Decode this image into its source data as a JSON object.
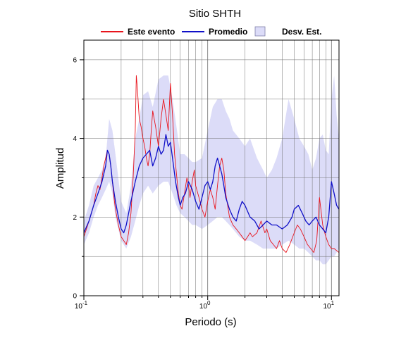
{
  "chart_data": {
    "type": "line",
    "title": "Sitio SHTH",
    "xlabel": "Periodo (s)",
    "ylabel": "Amplitud",
    "xscale": "log",
    "xlim": [
      0.1,
      11.5
    ],
    "ylim": [
      0,
      6.5
    ],
    "grid": true,
    "legend_position": "top",
    "x_ticks": [
      {
        "value": 0.1,
        "base": "10",
        "exp": "-1"
      },
      {
        "value": 1,
        "base": "10",
        "exp": "0"
      },
      {
        "value": 10,
        "base": "10",
        "exp": "1"
      }
    ],
    "y_ticks": [
      {
        "value": 0,
        "label": "0"
      },
      {
        "value": 2,
        "label": "2"
      },
      {
        "value": 4,
        "label": "4"
      },
      {
        "value": 6,
        "label": "6"
      }
    ],
    "legend": [
      {
        "label": "Este evento",
        "kind": "line",
        "color": "#e8141c"
      },
      {
        "label": "Promedio",
        "kind": "line",
        "color": "#1010c8"
      },
      {
        "label": "Desv. Est.",
        "kind": "band",
        "color": "#dcdcf8"
      }
    ],
    "band": {
      "name": "Desv. Est.",
      "color": "#dcdcf8",
      "x": [
        0.1,
        0.11,
        0.12,
        0.13,
        0.14,
        0.15,
        0.16,
        0.17,
        0.18,
        0.2,
        0.22,
        0.24,
        0.26,
        0.28,
        0.3,
        0.33,
        0.36,
        0.4,
        0.44,
        0.48,
        0.52,
        0.56,
        0.6,
        0.65,
        0.7,
        0.75,
        0.8,
        0.9,
        1.0,
        1.1,
        1.2,
        1.3,
        1.4,
        1.5,
        1.6,
        1.8,
        2.0,
        2.2,
        2.5,
        2.8,
        3.0,
        3.3,
        3.6,
        4.0,
        4.5,
        5.0,
        5.5,
        6.0,
        6.5,
        7.0,
        7.5,
        8.0,
        8.5,
        9.0,
        9.5,
        10.0,
        10.5,
        11.0,
        11.5
      ],
      "upper": [
        1.9,
        2.3,
        2.8,
        3.0,
        3.2,
        3.5,
        4.5,
        4.2,
        3.6,
        2.4,
        2.1,
        2.8,
        4.0,
        4.5,
        5.1,
        5.2,
        4.8,
        5.5,
        5.6,
        5.6,
        5.0,
        4.3,
        3.6,
        3.6,
        3.5,
        3.4,
        3.4,
        3.5,
        4.2,
        4.8,
        5.0,
        5.0,
        4.7,
        4.5,
        4.2,
        4.0,
        3.8,
        4.0,
        3.5,
        3.2,
        3.0,
        3.2,
        3.5,
        4.0,
        5.0,
        4.5,
        4.0,
        3.8,
        3.6,
        3.2,
        3.5,
        4.0,
        4.1,
        3.7,
        3.6,
        5.0,
        5.6,
        4.6,
        4.0
      ],
      "lower": [
        1.3,
        1.6,
        2.0,
        2.3,
        2.5,
        2.7,
        2.9,
        2.6,
        2.0,
        1.4,
        1.2,
        1.5,
        1.9,
        2.3,
        2.6,
        2.8,
        2.6,
        2.8,
        2.9,
        2.9,
        2.6,
        2.3,
        2.1,
        2.0,
        1.9,
        1.8,
        1.8,
        1.7,
        1.8,
        1.9,
        2.0,
        2.0,
        1.9,
        1.8,
        1.7,
        1.5,
        1.4,
        1.4,
        1.3,
        1.2,
        1.2,
        1.2,
        1.2,
        1.3,
        1.4,
        1.3,
        1.2,
        1.2,
        1.1,
        1.0,
        0.9,
        0.9,
        0.8,
        0.8,
        0.9,
        1.0,
        1.0,
        1.1,
        1.2
      ]
    },
    "series": [
      {
        "name": "Este evento",
        "color": "#e8141c",
        "x": [
          0.1,
          0.105,
          0.11,
          0.115,
          0.12,
          0.125,
          0.13,
          0.135,
          0.14,
          0.145,
          0.15,
          0.155,
          0.16,
          0.165,
          0.17,
          0.175,
          0.18,
          0.19,
          0.2,
          0.21,
          0.22,
          0.23,
          0.24,
          0.25,
          0.26,
          0.265,
          0.27,
          0.28,
          0.29,
          0.3,
          0.31,
          0.32,
          0.33,
          0.34,
          0.35,
          0.36,
          0.38,
          0.4,
          0.42,
          0.44,
          0.46,
          0.48,
          0.5,
          0.52,
          0.54,
          0.56,
          0.58,
          0.6,
          0.62,
          0.65,
          0.68,
          0.7,
          0.72,
          0.75,
          0.78,
          0.8,
          0.85,
          0.9,
          0.95,
          1.0,
          1.05,
          1.1,
          1.15,
          1.2,
          1.25,
          1.3,
          1.35,
          1.4,
          1.45,
          1.5,
          1.6,
          1.7,
          1.8,
          1.9,
          2.0,
          2.1,
          2.2,
          2.3,
          2.5,
          2.7,
          2.9,
          3.0,
          3.2,
          3.4,
          3.6,
          3.8,
          4.0,
          4.3,
          4.6,
          5.0,
          5.3,
          5.6,
          6.0,
          6.4,
          6.8,
          7.2,
          7.6,
          8.0,
          8.5,
          9.0,
          9.5,
          10.0,
          10.5,
          11.0,
          11.5
        ],
        "values": [
          1.5,
          1.7,
          1.9,
          2.1,
          2.3,
          2.6,
          2.8,
          2.7,
          3.0,
          3.3,
          3.5,
          3.7,
          3.6,
          3.3,
          2.9,
          2.5,
          2.2,
          1.8,
          1.5,
          1.4,
          1.3,
          1.6,
          2.1,
          3.0,
          4.2,
          5.6,
          5.3,
          4.5,
          4.3,
          4.0,
          3.8,
          3.5,
          3.3,
          3.6,
          4.2,
          4.7,
          4.3,
          3.8,
          4.5,
          5.0,
          4.6,
          4.2,
          5.4,
          4.6,
          3.6,
          3.1,
          2.6,
          2.3,
          2.2,
          2.6,
          3.0,
          2.8,
          2.5,
          2.9,
          3.2,
          2.8,
          2.5,
          2.2,
          2.0,
          2.4,
          2.7,
          2.5,
          2.2,
          2.8,
          3.3,
          3.5,
          3.2,
          2.6,
          2.3,
          2.0,
          1.8,
          1.7,
          1.6,
          1.5,
          1.4,
          1.5,
          1.6,
          1.5,
          1.6,
          1.9,
          1.6,
          1.7,
          1.4,
          1.3,
          1.2,
          1.4,
          1.2,
          1.1,
          1.3,
          1.6,
          1.8,
          1.7,
          1.5,
          1.3,
          1.2,
          1.1,
          1.4,
          2.5,
          1.8,
          1.5,
          1.3,
          1.2,
          1.2,
          1.15,
          1.1
        ]
      },
      {
        "name": "Promedio",
        "color": "#1010c8",
        "x": [
          0.1,
          0.11,
          0.12,
          0.13,
          0.14,
          0.15,
          0.155,
          0.16,
          0.165,
          0.17,
          0.18,
          0.19,
          0.2,
          0.21,
          0.22,
          0.23,
          0.24,
          0.26,
          0.28,
          0.3,
          0.32,
          0.34,
          0.36,
          0.38,
          0.4,
          0.42,
          0.44,
          0.46,
          0.48,
          0.5,
          0.52,
          0.55,
          0.58,
          0.6,
          0.63,
          0.66,
          0.7,
          0.75,
          0.8,
          0.85,
          0.9,
          0.95,
          1.0,
          1.05,
          1.1,
          1.15,
          1.2,
          1.25,
          1.3,
          1.35,
          1.4,
          1.5,
          1.6,
          1.7,
          1.8,
          1.9,
          2.0,
          2.2,
          2.4,
          2.6,
          2.8,
          3.0,
          3.3,
          3.6,
          4.0,
          4.4,
          4.8,
          5.0,
          5.4,
          5.8,
          6.2,
          6.6,
          7.0,
          7.5,
          8.0,
          8.5,
          9.0,
          9.5,
          10.0,
          10.5,
          11.0,
          11.5
        ],
        "values": [
          1.6,
          1.9,
          2.3,
          2.6,
          2.9,
          3.3,
          3.7,
          3.6,
          3.3,
          2.9,
          2.4,
          2.0,
          1.7,
          1.6,
          1.8,
          2.1,
          2.4,
          2.9,
          3.3,
          3.5,
          3.6,
          3.7,
          3.3,
          3.5,
          3.8,
          3.6,
          3.7,
          4.1,
          3.8,
          3.9,
          3.5,
          2.9,
          2.5,
          2.3,
          2.5,
          2.6,
          2.9,
          2.7,
          2.4,
          2.2,
          2.5,
          2.8,
          2.9,
          2.7,
          2.9,
          3.3,
          3.5,
          3.3,
          3.1,
          2.8,
          2.5,
          2.2,
          2.0,
          1.9,
          2.2,
          2.4,
          2.3,
          2.0,
          1.9,
          1.7,
          1.8,
          1.9,
          1.8,
          1.8,
          1.7,
          1.8,
          2.0,
          2.2,
          2.3,
          2.1,
          1.9,
          1.8,
          1.9,
          2.0,
          1.8,
          1.7,
          1.6,
          2.0,
          2.9,
          2.6,
          2.3,
          2.2
        ]
      }
    ]
  }
}
